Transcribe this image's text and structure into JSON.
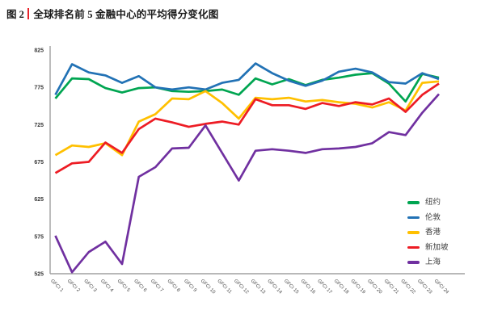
{
  "figure": {
    "label": "图 2",
    "title": "全球排名前 5 金融中心的平均得分变化图",
    "accent_color": "#e8232a"
  },
  "chart_data": {
    "type": "line",
    "title": "全球排名前 5 金融中心的平均得分变化图",
    "x_labels": [
      "GFCI 1",
      "GFCI 2",
      "GFCI 3",
      "GFCI 4",
      "GFCI 5",
      "GFCI 6",
      "GFCI 7",
      "GFCI 8",
      "GFCI 9",
      "GFCI 10",
      "GFCI 11",
      "GFCI 12",
      "GFCI 13",
      "GFCI 14",
      "GFCI 15",
      "GFCI 16",
      "GFCI 17",
      "GFCI 18",
      "GFCI 19",
      "GFCI 20",
      "GFCI 21",
      "GFCI 22",
      "GFCI 23",
      "GFCI 24"
    ],
    "y_ticks": [
      825,
      775,
      725,
      675,
      625,
      575,
      525
    ],
    "ylim": [
      525,
      825
    ],
    "grid": false,
    "legend_position": "right",
    "axis_color": "#a0a0a0",
    "tick_label_color": "#3a3a3a",
    "series": [
      {
        "key": "new-york",
        "name": "纽约",
        "color": "#00a551",
        "values": [
          760,
          787,
          786,
          774,
          768,
          774,
          775,
          770,
          769,
          770,
          772,
          765,
          787,
          779,
          786,
          778,
          785,
          788,
          792,
          794,
          780,
          756,
          793,
          788
        ]
      },
      {
        "key": "london",
        "name": "伦敦",
        "color": "#2272b5",
        "values": [
          765,
          806,
          795,
          791,
          781,
          790,
          775,
          772,
          775,
          772,
          781,
          785,
          807,
          794,
          784,
          777,
          784,
          796,
          800,
          795,
          782,
          780,
          794,
          786
        ]
      },
      {
        "key": "hong-kong",
        "name": "香港",
        "color": "#ffc000",
        "values": [
          684,
          697,
          695,
          700,
          684,
          729,
          739,
          760,
          759,
          770,
          754,
          733,
          761,
          759,
          761,
          756,
          758,
          755,
          753,
          748,
          755,
          744,
          781,
          783
        ]
      },
      {
        "key": "singapore",
        "name": "新加坡",
        "color": "#ed1c24",
        "values": [
          660,
          673,
          675,
          701,
          687,
          719,
          733,
          728,
          722,
          726,
          729,
          725,
          759,
          751,
          751,
          746,
          754,
          750,
          755,
          752,
          760,
          742,
          765,
          780
        ]
      },
      {
        "key": "shanghai",
        "name": "上海",
        "color": "#7030a0",
        "values": [
          576,
          527,
          554,
          568,
          538,
          655,
          668,
          693,
          694,
          724,
          687,
          650,
          690,
          692,
          690,
          687,
          692,
          693,
          695,
          700,
          715,
          711,
          741,
          766
        ]
      }
    ]
  }
}
